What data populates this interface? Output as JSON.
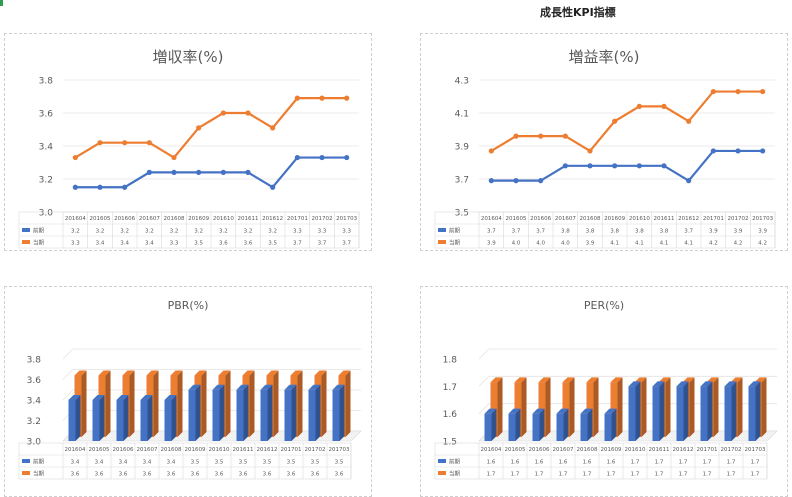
{
  "page": {
    "title": "成長性KPI指標"
  },
  "colors": {
    "blue": "#4472c4",
    "orange": "#ed7d31",
    "grid": "#e4e4e4",
    "axis_text": "#595959"
  },
  "chart_data": [
    {
      "id": "revenue",
      "type": "line",
      "title": "増収率(%)",
      "categories": [
        "201604",
        "201605",
        "201606",
        "201607",
        "201608",
        "201609",
        "201610",
        "201611",
        "201612",
        "201701",
        "201702",
        "201703"
      ],
      "series": [
        {
          "name": "前期",
          "color": "#4472c4",
          "values": [
            3.2,
            3.2,
            3.2,
            3.2,
            3.2,
            3.2,
            3.2,
            3.2,
            3.2,
            3.3,
            3.3,
            3.3
          ]
        },
        {
          "name": "当期",
          "color": "#ed7d31",
          "values": [
            3.3,
            3.4,
            3.4,
            3.4,
            3.3,
            3.5,
            3.6,
            3.6,
            3.5,
            3.7,
            3.7,
            3.7
          ]
        }
      ],
      "plot_values": [
        [
          3.15,
          3.15,
          3.15,
          3.24,
          3.24,
          3.24,
          3.24,
          3.24,
          3.15,
          3.33,
          3.33,
          3.33
        ],
        [
          3.33,
          3.42,
          3.42,
          3.42,
          3.33,
          3.51,
          3.6,
          3.6,
          3.51,
          3.69,
          3.69,
          3.69
        ]
      ],
      "yticks": [
        "3.0",
        "3.2",
        "3.4",
        "3.6",
        "3.8"
      ],
      "ylim": [
        3.0,
        3.8
      ]
    },
    {
      "id": "profit",
      "type": "line",
      "title": "増益率(%)",
      "categories": [
        "201604",
        "201605",
        "201606",
        "201607",
        "201608",
        "201609",
        "201610",
        "201611",
        "201612",
        "201701",
        "201702",
        "201703"
      ],
      "series": [
        {
          "name": "前期",
          "color": "#4472c4",
          "values": [
            3.7,
            3.7,
            3.7,
            3.8,
            3.8,
            3.8,
            3.8,
            3.8,
            3.7,
            3.9,
            3.9,
            3.9
          ]
        },
        {
          "name": "当期",
          "color": "#ed7d31",
          "values": [
            3.9,
            4.0,
            4.0,
            4.0,
            3.9,
            4.1,
            4.1,
            4.1,
            4.1,
            4.2,
            4.2,
            4.2
          ]
        }
      ],
      "plot_values": [
        [
          3.69,
          3.69,
          3.69,
          3.78,
          3.78,
          3.78,
          3.78,
          3.78,
          3.69,
          3.87,
          3.87,
          3.87
        ],
        [
          3.87,
          3.96,
          3.96,
          3.96,
          3.87,
          4.05,
          4.14,
          4.14,
          4.05,
          4.23,
          4.23,
          4.23
        ]
      ],
      "yticks": [
        "3.5",
        "3.7",
        "3.9",
        "4.1",
        "4.3"
      ],
      "ylim": [
        3.5,
        4.3
      ]
    },
    {
      "id": "pbr",
      "type": "bar",
      "title": "PBR(%)",
      "categories": [
        "201604",
        "201605",
        "201606",
        "201607",
        "201608",
        "201609",
        "201610",
        "201611",
        "201612",
        "201701",
        "201702",
        "201703"
      ],
      "series": [
        {
          "name": "前期",
          "color": "#4472c4",
          "values": [
            3.4,
            3.4,
            3.4,
            3.4,
            3.4,
            3.5,
            3.5,
            3.5,
            3.5,
            3.5,
            3.5,
            3.5
          ]
        },
        {
          "name": "当期",
          "color": "#ed7d31",
          "values": [
            3.6,
            3.6,
            3.6,
            3.6,
            3.6,
            3.6,
            3.6,
            3.6,
            3.6,
            3.6,
            3.6,
            3.6
          ]
        }
      ],
      "yticks": [
        "3.0",
        "3.2",
        "3.4",
        "3.6",
        "3.8"
      ],
      "ylim": [
        3.0,
        3.8
      ]
    },
    {
      "id": "per",
      "type": "bar",
      "title": "PER(%)",
      "categories": [
        "201604",
        "201605",
        "201606",
        "201607",
        "201608",
        "201609",
        "201610",
        "201611",
        "201612",
        "201701",
        "201702",
        "201703"
      ],
      "series": [
        {
          "name": "前期",
          "color": "#4472c4",
          "values": [
            1.6,
            1.6,
            1.6,
            1.6,
            1.6,
            1.6,
            1.7,
            1.7,
            1.7,
            1.7,
            1.7,
            1.7
          ]
        },
        {
          "name": "当期",
          "color": "#ed7d31",
          "values": [
            1.7,
            1.7,
            1.7,
            1.7,
            1.7,
            1.7,
            1.7,
            1.7,
            1.7,
            1.7,
            1.7,
            1.7
          ]
        }
      ],
      "yticks": [
        "1.5",
        "1.6",
        "1.7",
        "1.8"
      ],
      "ylim": [
        1.5,
        1.8
      ]
    }
  ]
}
